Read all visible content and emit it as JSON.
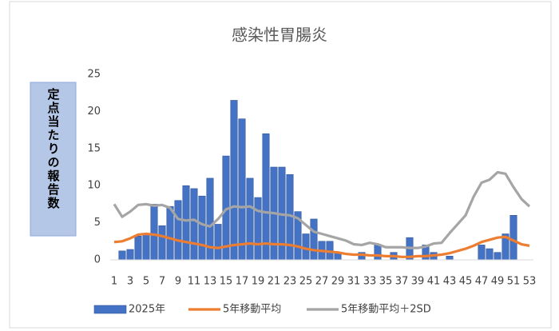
{
  "chart_data": {
    "type": "bar-line",
    "title": "感染性胃腸炎",
    "y_label": "定点当たりの報告数",
    "categories": [
      "1",
      null,
      "3",
      null,
      "5",
      null,
      "7",
      null,
      "9",
      null,
      "11",
      null,
      "13",
      null,
      "15",
      null,
      "17",
      null,
      "19",
      null,
      "21",
      null,
      "23",
      null,
      "25",
      null,
      "27",
      null,
      "29",
      null,
      "31",
      null,
      "33",
      null,
      "35",
      null,
      "37",
      null,
      "39",
      null,
      "41",
      null,
      "43",
      null,
      "45",
      null,
      "47",
      null,
      "49",
      null,
      "51",
      null,
      "53"
    ],
    "series": [
      {
        "name": "2025年",
        "type": "bar",
        "color": "#4472c4",
        "values": [
          0,
          1.2,
          1.4,
          3.2,
          3.5,
          7.5,
          4.6,
          7.2,
          8.0,
          10.0,
          9.6,
          8.6,
          11.0,
          4.8,
          14.0,
          21.5,
          19.0,
          11.0,
          8.4,
          17.0,
          12.5,
          12.5,
          11.5,
          6.5,
          3.5,
          5.5,
          2.5,
          2.5,
          1.0,
          0,
          0,
          1.0,
          0,
          2.0,
          0,
          1.0,
          0,
          3.0,
          0,
          2.0,
          1.0,
          0,
          0.5,
          0,
          0,
          0,
          2.0,
          1.5,
          1.0,
          3.5,
          6.0,
          0,
          0
        ]
      },
      {
        "name": "5年移動平均",
        "type": "line",
        "color": "#ed7d31",
        "values": [
          2.4,
          2.5,
          2.9,
          3.4,
          3.5,
          3.4,
          3.2,
          2.9,
          2.6,
          2.4,
          2.2,
          2.0,
          1.7,
          1.6,
          1.8,
          2.0,
          2.1,
          2.2,
          2.1,
          2.2,
          2.1,
          2.1,
          2.0,
          1.8,
          1.5,
          1.3,
          1.2,
          1.1,
          1.0,
          0.8,
          0.7,
          0.7,
          0.6,
          0.6,
          0.5,
          0.5,
          0.4,
          0.4,
          0.5,
          0.5,
          0.6,
          0.7,
          0.9,
          1.2,
          1.5,
          1.9,
          2.4,
          2.7,
          3.0,
          3.1,
          2.6,
          2.1,
          1.9
        ]
      },
      {
        "name": "5年移動平均＋2SD",
        "type": "line",
        "color": "#a5a5a5",
        "values": [
          7.5,
          5.8,
          6.5,
          7.4,
          7.5,
          7.3,
          7.4,
          7.0,
          5.5,
          5.3,
          5.4,
          4.8,
          4.5,
          5.5,
          6.8,
          7.2,
          7.1,
          7.2,
          6.6,
          6.4,
          6.3,
          6.1,
          6.0,
          5.6,
          4.7,
          3.8,
          3.5,
          3.2,
          2.9,
          2.6,
          2.1,
          2.0,
          2.3,
          2.1,
          1.7,
          1.7,
          1.7,
          1.6,
          1.6,
          1.8,
          2.2,
          2.3,
          3.6,
          4.8,
          6.0,
          8.5,
          10.4,
          10.8,
          11.8,
          11.6,
          9.8,
          8.2,
          7.2
        ]
      }
    ],
    "ylim": [
      0,
      25
    ],
    "yticks": [
      0,
      5,
      10,
      15,
      20,
      25
    ],
    "grid": false
  }
}
